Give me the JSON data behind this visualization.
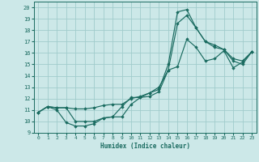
{
  "xlabel": "Humidex (Indice chaleur)",
  "xlim": [
    -0.5,
    23.5
  ],
  "ylim": [
    9,
    20.5
  ],
  "xticks": [
    0,
    1,
    2,
    3,
    4,
    5,
    6,
    7,
    8,
    9,
    10,
    11,
    12,
    13,
    14,
    15,
    16,
    17,
    18,
    19,
    20,
    21,
    22,
    23
  ],
  "yticks": [
    9,
    10,
    11,
    12,
    13,
    14,
    15,
    16,
    17,
    18,
    19,
    20
  ],
  "background_color": "#cce8e8",
  "grid_color": "#a0cccc",
  "line_color": "#1a6b60",
  "series": [
    {
      "x": [
        0,
        1,
        2,
        3,
        4,
        5,
        6,
        7,
        8,
        9,
        10,
        11,
        12,
        13,
        14,
        15,
        16,
        17,
        18,
        19,
        20,
        21,
        22,
        23
      ],
      "y": [
        10.8,
        11.3,
        11.0,
        9.9,
        9.6,
        9.6,
        9.8,
        10.3,
        10.4,
        10.4,
        11.5,
        12.1,
        12.2,
        12.6,
        14.5,
        14.8,
        17.2,
        16.5,
        15.3,
        15.5,
        16.2,
        14.7,
        15.2,
        16.1
      ]
    },
    {
      "x": [
        0,
        1,
        2,
        3,
        4,
        5,
        6,
        7,
        8,
        9,
        10,
        11,
        12,
        13,
        14,
        15,
        16,
        17,
        18,
        19,
        20,
        21,
        22,
        23
      ],
      "y": [
        10.8,
        11.3,
        11.2,
        11.2,
        11.1,
        11.1,
        11.2,
        11.4,
        11.5,
        11.5,
        12.0,
        12.2,
        12.5,
        13.0,
        14.5,
        18.6,
        19.3,
        18.2,
        17.0,
        16.5,
        16.3,
        15.5,
        15.3,
        16.1
      ]
    },
    {
      "x": [
        0,
        1,
        2,
        3,
        4,
        5,
        6,
        7,
        8,
        9,
        10,
        11,
        12,
        13,
        14,
        15,
        16,
        17,
        18,
        19,
        20,
        21,
        22,
        23
      ],
      "y": [
        10.8,
        11.3,
        11.2,
        11.2,
        10.0,
        10.0,
        10.0,
        10.3,
        10.4,
        11.3,
        12.1,
        12.1,
        12.5,
        12.8,
        15.0,
        19.6,
        19.8,
        18.2,
        17.0,
        16.7,
        16.3,
        15.3,
        15.0,
        16.1
      ]
    }
  ]
}
